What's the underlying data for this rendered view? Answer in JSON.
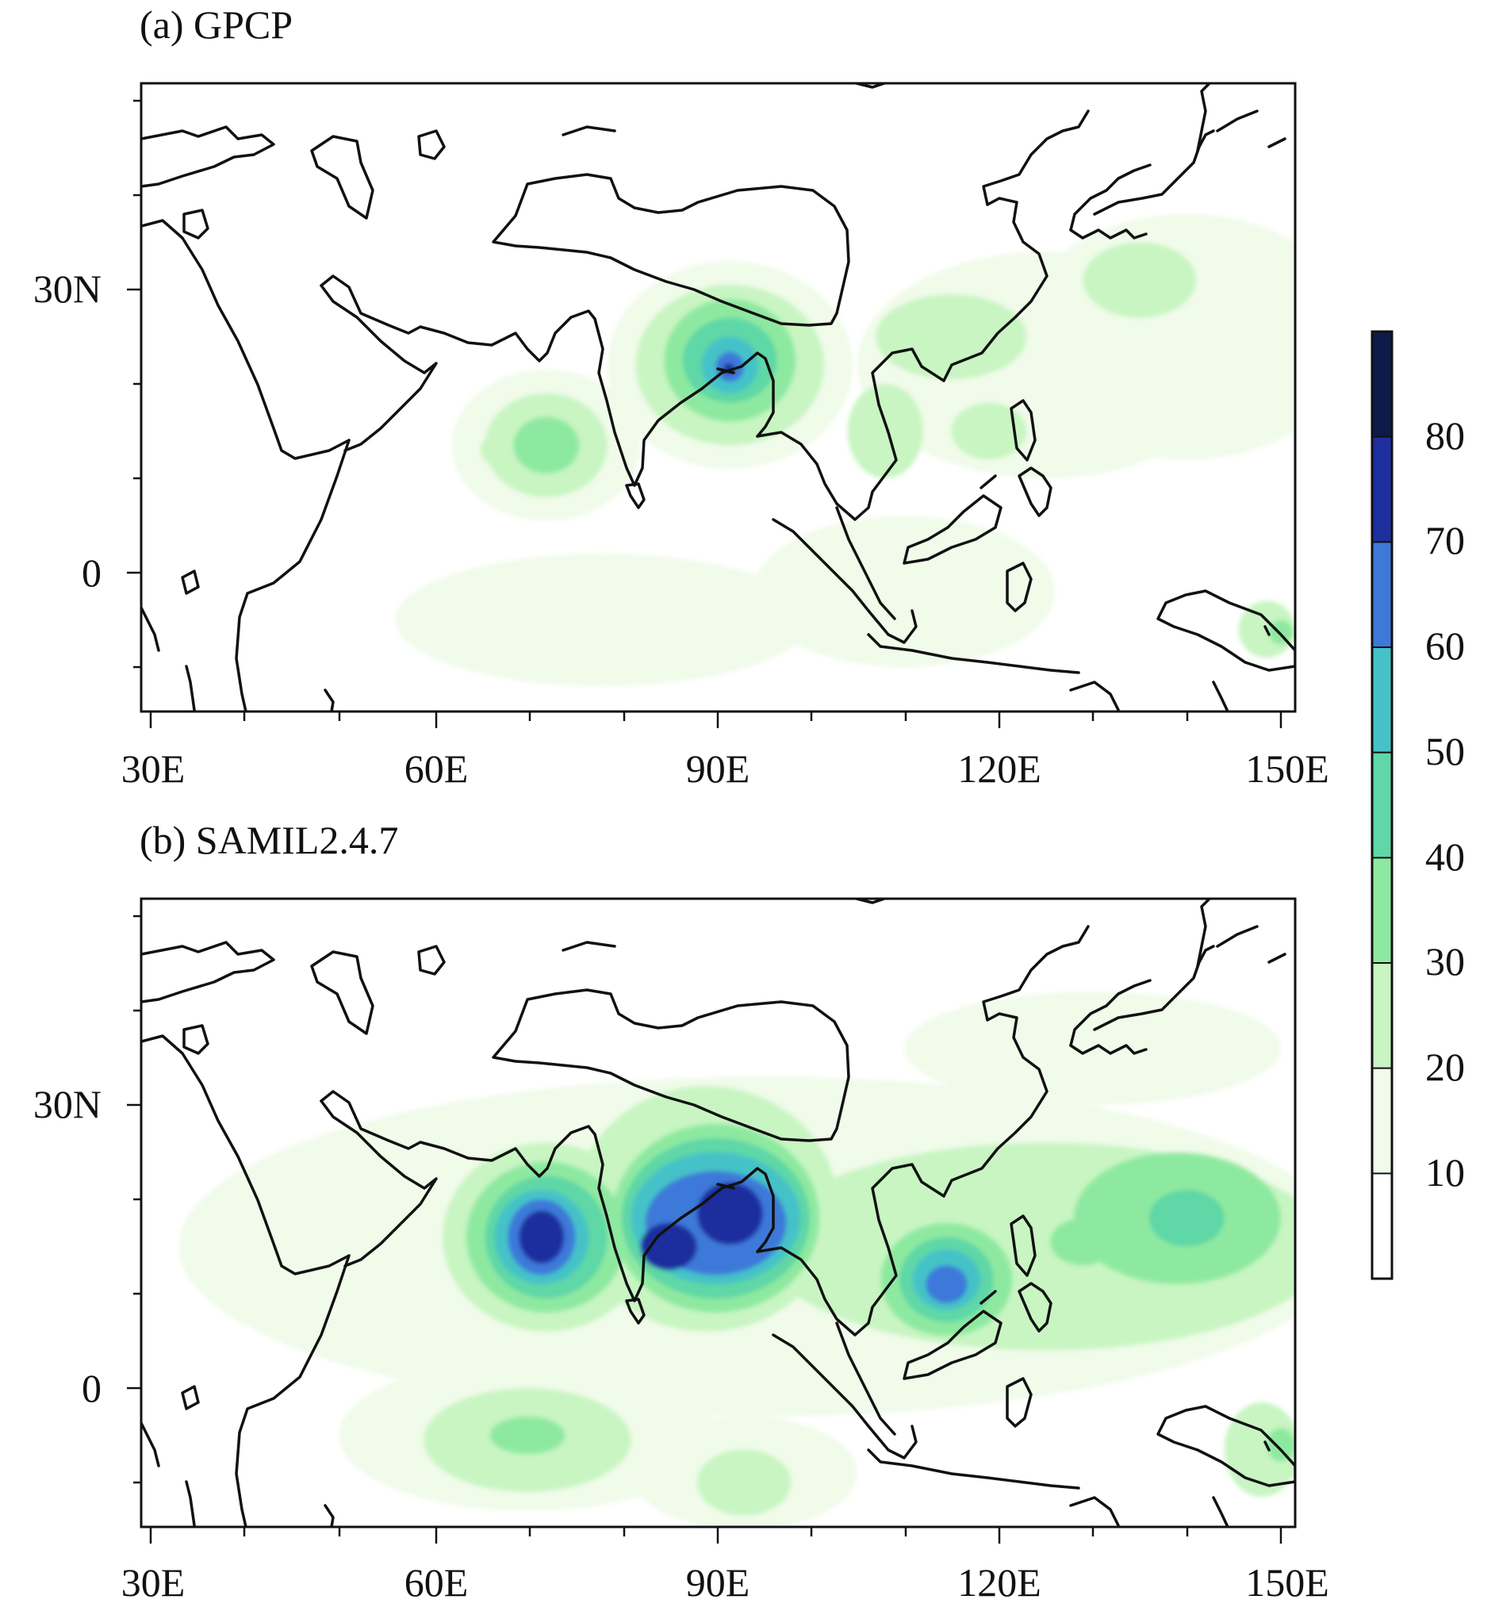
{
  "panels": [
    {
      "title": "(a) GPCP",
      "x_ticks": [
        "30E",
        "60E",
        "90E",
        "120E",
        "150E"
      ],
      "y_ticks": [
        "30N",
        "0"
      ],
      "blobs": [
        {
          "lon": 91.5,
          "lat": 22.0,
          "rlon": 13,
          "rlat": 11,
          "level": 1
        },
        {
          "lon": 91.5,
          "lat": 22.0,
          "rlon": 10,
          "rlat": 8.5,
          "level": 2
        },
        {
          "lon": 91.5,
          "lat": 22.5,
          "rlon": 7,
          "rlat": 6.5,
          "level": 3
        },
        {
          "lon": 91.5,
          "lat": 22.5,
          "rlon": 5,
          "rlat": 4.5,
          "level": 4
        },
        {
          "lon": 91.5,
          "lat": 22.0,
          "rlon": 3,
          "rlat": 3,
          "level": 5
        },
        {
          "lon": 91.5,
          "lat": 21.8,
          "rlon": 1.5,
          "rlat": 1.6,
          "level": 6
        },
        {
          "lon": 91.4,
          "lat": 21.6,
          "rlon": 0.6,
          "rlat": 0.6,
          "level": 7
        },
        {
          "lon": 72.0,
          "lat": 13.5,
          "rlon": 10,
          "rlat": 8,
          "level": 1
        },
        {
          "lon": 72.0,
          "lat": 13.5,
          "rlon": 6.5,
          "rlat": 5.5,
          "level": 2
        },
        {
          "lon": 72.0,
          "lat": 13.5,
          "rlon": 3.5,
          "rlat": 3,
          "level": 3
        },
        {
          "lon": 68.0,
          "lat": 13.0,
          "rlon": 3,
          "rlat": 2,
          "level": 2
        },
        {
          "lon": 125.0,
          "lat": 22.0,
          "rlon": 20,
          "rlat": 12,
          "level": 1
        },
        {
          "lon": 115.0,
          "lat": 25.0,
          "rlon": 8,
          "rlat": 4.5,
          "level": 2
        },
        {
          "lon": 108.0,
          "lat": 15.0,
          "rlon": 4,
          "rlat": 5,
          "level": 2
        },
        {
          "lon": 119.0,
          "lat": 15.0,
          "rlon": 4,
          "rlat": 3,
          "level": 2
        },
        {
          "lon": 135.0,
          "lat": 31.0,
          "rlon": 6,
          "rlat": 4,
          "level": 2
        },
        {
          "lon": 140.0,
          "lat": 25.0,
          "rlon": 18,
          "rlat": 13,
          "level": 1
        },
        {
          "lon": 78.0,
          "lat": -5.0,
          "rlon": 22,
          "rlat": 7,
          "level": 1
        },
        {
          "lon": 110.0,
          "lat": -2.0,
          "rlon": 16,
          "rlat": 8,
          "level": 1
        },
        {
          "lon": 148.5,
          "lat": -6.0,
          "rlon": 3,
          "rlat": 3,
          "level": 2
        },
        {
          "lon": 150.0,
          "lat": -6.3,
          "rlon": 1.3,
          "rlat": 1.3,
          "level": 3
        }
      ]
    },
    {
      "title": "(b) SAMIL2.4.7",
      "x_ticks": [
        "30E",
        "60E",
        "90E",
        "120E",
        "150E"
      ],
      "y_ticks": [
        "30N",
        "0"
      ],
      "blobs": [
        {
          "lon": 95.0,
          "lat": 15.0,
          "rlon": 62,
          "rlat": 18,
          "level": 1
        },
        {
          "lon": 130.0,
          "lat": 36.0,
          "rlon": 20,
          "rlat": 6,
          "level": 1
        },
        {
          "lon": 89.0,
          "lat": 19.0,
          "rlon": 14,
          "rlat": 13,
          "level": 2
        },
        {
          "lon": 72.0,
          "lat": 16.0,
          "rlon": 11,
          "rlat": 10,
          "level": 2
        },
        {
          "lon": 72.0,
          "lat": 16.0,
          "rlon": 8.5,
          "rlat": 8,
          "level": 3
        },
        {
          "lon": 72.0,
          "lat": 16.0,
          "rlon": 6.5,
          "rlat": 6.5,
          "level": 4
        },
        {
          "lon": 71.5,
          "lat": 16.0,
          "rlon": 5,
          "rlat": 5,
          "level": 5
        },
        {
          "lon": 71.5,
          "lat": 16.0,
          "rlon": 3.6,
          "rlat": 4,
          "level": 6
        },
        {
          "lon": 71.5,
          "lat": 16.0,
          "rlon": 2.4,
          "rlat": 2.8,
          "level": 7
        },
        {
          "lon": 90.0,
          "lat": 18.0,
          "rlon": 11,
          "rlat": 10,
          "level": 3
        },
        {
          "lon": 90.0,
          "lat": 18.0,
          "rlon": 10,
          "rlat": 8.5,
          "level": 4
        },
        {
          "lon": 90.0,
          "lat": 18.0,
          "rlon": 9,
          "rlat": 7,
          "level": 5
        },
        {
          "lon": 90.0,
          "lat": 17.5,
          "rlon": 7.5,
          "rlat": 5.5,
          "level": 6
        },
        {
          "lon": 91.5,
          "lat": 18.5,
          "rlon": 3.5,
          "rlat": 3.3,
          "level": 7
        },
        {
          "lon": 85.0,
          "lat": 15.0,
          "rlon": 3,
          "rlat": 2.5,
          "level": 7
        },
        {
          "lon": 125.0,
          "lat": 15.0,
          "rlon": 30,
          "rlat": 11,
          "level": 2
        },
        {
          "lon": 114.5,
          "lat": 11.5,
          "rlon": 7,
          "rlat": 6,
          "level": 3
        },
        {
          "lon": 114.5,
          "lat": 11.5,
          "rlon": 5,
          "rlat": 4.5,
          "level": 4
        },
        {
          "lon": 114.5,
          "lat": 11.5,
          "rlon": 3.6,
          "rlat": 3.2,
          "level": 5
        },
        {
          "lon": 114.5,
          "lat": 11.0,
          "rlon": 2.2,
          "rlat": 2,
          "level": 6
        },
        {
          "lon": 139.0,
          "lat": 18.0,
          "rlon": 11,
          "rlat": 7,
          "level": 3
        },
        {
          "lon": 140.0,
          "lat": 18.0,
          "rlon": 4,
          "rlat": 3,
          "level": 4
        },
        {
          "lon": 129.0,
          "lat": 15.5,
          "rlon": 3.5,
          "rlat": 2.5,
          "level": 3
        },
        {
          "lon": 70.0,
          "lat": -5.0,
          "rlon": 20,
          "rlat": 8,
          "level": 1
        },
        {
          "lon": 70.0,
          "lat": -5.5,
          "rlon": 11,
          "rlat": 5.5,
          "level": 2
        },
        {
          "lon": 70.0,
          "lat": -5.0,
          "rlon": 4,
          "rlat": 2,
          "level": 3
        },
        {
          "lon": 93.0,
          "lat": -9.0,
          "rlon": 12,
          "rlat": 6,
          "level": 1
        },
        {
          "lon": 93.0,
          "lat": -10.0,
          "rlon": 5,
          "rlat": 3.5,
          "level": 2
        },
        {
          "lon": 148.0,
          "lat": -6.5,
          "rlon": 4,
          "rlat": 5,
          "level": 2
        },
        {
          "lon": 150.0,
          "lat": -6.0,
          "rlon": 1.5,
          "rlat": 1.8,
          "level": 3
        }
      ]
    }
  ],
  "colorbar": {
    "ticks": [
      "10",
      "20",
      "30",
      "40",
      "50",
      "60",
      "70",
      "80"
    ],
    "colors": [
      "#ffffff",
      "#f0fbe9",
      "#c8f5c2",
      "#8ee9a0",
      "#5fd7a6",
      "#45c2c8",
      "#3e79d9",
      "#1d2f9e",
      "#0e1a4a"
    ]
  }
}
